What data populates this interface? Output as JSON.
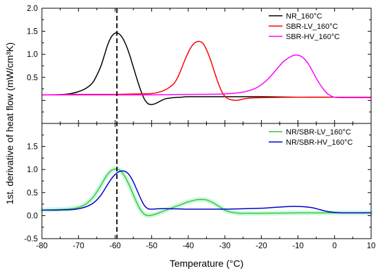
{
  "chart_data": {
    "type": "line",
    "xlabel": "Temperature (°C)",
    "ylabel": "1st. derivative of heat flow (mW/cm³K)",
    "xlim": [
      -80,
      10
    ],
    "xticks": [
      -80,
      -70,
      -60,
      -50,
      -40,
      -30,
      -20,
      -10,
      0,
      10
    ],
    "x_tick_labels": [
      "-80",
      "-70",
      "-60",
      "-50",
      "-40",
      "-30",
      "-20",
      "-10",
      "0",
      "10"
    ],
    "y_tick_labels": [
      "-0.5",
      "0.0",
      "0.5",
      "1.0",
      "1.5",
      "2.0"
    ],
    "grid": false,
    "reference_line": {
      "x": -59.5,
      "style": "dashed",
      "color": "#000000"
    },
    "panels": [
      {
        "name": "top",
        "ylim": [
          -0.5,
          2.0
        ],
        "yticks": [
          0.0,
          0.5,
          1.0,
          1.5,
          2.0
        ],
        "legend_position": "top-right",
        "series": [
          {
            "name": "NR_160°C",
            "color": "#000000",
            "x": [
              -76,
              -74,
              -72,
              -70,
              -68,
              -66,
              -64,
              -63,
              -62,
              -61,
              -60,
              -59,
              -58,
              -57,
              -56,
              -55,
              -54,
              -53,
              -52,
              -51,
              -50,
              -49,
              -48,
              -47,
              -46,
              -45,
              -44,
              -42,
              -40,
              -35,
              -30,
              -20,
              -10,
              0,
              10
            ],
            "y": [
              0.12,
              0.13,
              0.15,
              0.19,
              0.26,
              0.4,
              0.72,
              0.96,
              1.21,
              1.38,
              1.46,
              1.45,
              1.36,
              1.2,
              0.98,
              0.72,
              0.46,
              0.22,
              0.03,
              -0.07,
              -0.09,
              -0.07,
              -0.03,
              0.01,
              0.04,
              0.05,
              0.06,
              0.07,
              0.08,
              0.08,
              0.08,
              0.08,
              0.07,
              0.07,
              0.07
            ]
          },
          {
            "name": "SBR-LV_160°C",
            "color": "#ff0000",
            "x": [
              -80,
              -70,
              -60,
              -55,
              -50,
              -48,
              -46,
              -44,
              -43,
              -42,
              -41,
              -40,
              -39,
              -38,
              -37,
              -36,
              -35,
              -34,
              -33,
              -32,
              -31,
              -30,
              -29,
              -28,
              -27,
              -26,
              -25,
              -23,
              -20,
              -10,
              0,
              10
            ],
            "y": [
              0.12,
              0.13,
              0.13,
              0.14,
              0.15,
              0.18,
              0.24,
              0.36,
              0.48,
              0.66,
              0.86,
              1.04,
              1.18,
              1.26,
              1.28,
              1.24,
              1.1,
              0.9,
              0.66,
              0.42,
              0.22,
              0.09,
              0.03,
              0.01,
              0.0,
              0.01,
              0.03,
              0.05,
              0.06,
              0.07,
              0.07,
              0.07
            ]
          },
          {
            "name": "SBR-HV_160°C",
            "color": "#ff00ff",
            "x": [
              -80,
              -70,
              -60,
              -50,
              -40,
              -30,
              -25,
              -22,
              -20,
              -18,
              -16,
              -14,
              -12,
              -11,
              -10,
              -9,
              -8,
              -7,
              -6,
              -5,
              -4,
              -3,
              -2,
              -1,
              0,
              2,
              4,
              6,
              8,
              10
            ],
            "y": [
              0.12,
              0.12,
              0.12,
              0.12,
              0.13,
              0.14,
              0.18,
              0.25,
              0.34,
              0.48,
              0.66,
              0.84,
              0.95,
              0.98,
              0.98,
              0.95,
              0.88,
              0.77,
              0.63,
              0.48,
              0.35,
              0.24,
              0.15,
              0.1,
              0.07,
              0.06,
              0.06,
              0.06,
              0.06,
              0.06
            ]
          }
        ]
      },
      {
        "name": "bottom",
        "ylim": [
          -0.5,
          2.0
        ],
        "yticks": [
          -0.5,
          0.0,
          0.5,
          1.0,
          1.5
        ],
        "legend_position": "top-right",
        "series": [
          {
            "name": "NR/SBR-LV_160°C",
            "color": "#33cc33",
            "x": [
              -80,
              -76,
              -72,
              -70,
              -68,
              -66,
              -64,
              -63,
              -62,
              -61,
              -60,
              -59,
              -58,
              -57,
              -56,
              -55,
              -54,
              -53,
              -52,
              -51,
              -50,
              -49,
              -48,
              -47,
              -46,
              -45,
              -44,
              -43,
              -42,
              -41,
              -40,
              -39,
              -38,
              -37,
              -36,
              -35,
              -34,
              -33,
              -32,
              -31,
              -30,
              -29,
              -28,
              -27,
              -26,
              -24,
              -20,
              -10,
              0,
              10
            ],
            "y": [
              0.12,
              0.13,
              0.15,
              0.18,
              0.25,
              0.4,
              0.64,
              0.78,
              0.9,
              0.98,
              1.01,
              1.0,
              0.93,
              0.8,
              0.64,
              0.45,
              0.27,
              0.12,
              0.03,
              0.0,
              0.01,
              0.03,
              0.06,
              0.09,
              0.12,
              0.15,
              0.18,
              0.21,
              0.24,
              0.27,
              0.3,
              0.32,
              0.34,
              0.35,
              0.35,
              0.34,
              0.31,
              0.27,
              0.22,
              0.17,
              0.12,
              0.09,
              0.07,
              0.06,
              0.05,
              0.05,
              0.05,
              0.06,
              0.06,
              0.06
            ]
          },
          {
            "name": "NR/SBR-HV_160°C",
            "color": "#0000cc",
            "x": [
              -80,
              -76,
              -72,
              -70,
              -68,
              -66,
              -64,
              -62,
              -61,
              -60,
              -59,
              -58,
              -57,
              -56,
              -55,
              -54,
              -53,
              -52,
              -51,
              -50,
              -48,
              -45,
              -40,
              -35,
              -30,
              -25,
              -20,
              -18,
              -16,
              -14,
              -12,
              -10,
              -8,
              -6,
              -4,
              -2,
              0,
              2,
              4,
              6,
              8,
              10
            ],
            "y": [
              0.12,
              0.12,
              0.13,
              0.15,
              0.19,
              0.27,
              0.43,
              0.68,
              0.8,
              0.89,
              0.95,
              0.97,
              0.95,
              0.87,
              0.73,
              0.55,
              0.37,
              0.22,
              0.15,
              0.14,
              0.15,
              0.15,
              0.14,
              0.14,
              0.14,
              0.15,
              0.16,
              0.17,
              0.18,
              0.19,
              0.2,
              0.2,
              0.19,
              0.17,
              0.13,
              0.09,
              0.07,
              0.06,
              0.06,
              0.06,
              0.06,
              0.06
            ]
          }
        ]
      }
    ]
  }
}
